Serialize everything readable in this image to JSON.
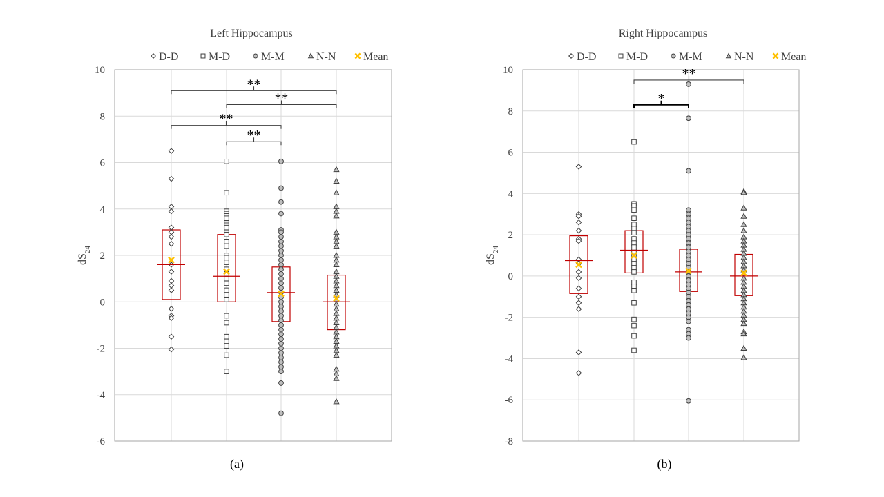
{
  "chart_data": [
    {
      "type": "scatter",
      "title": "Left Hippocampus",
      "panel_label": "(a)",
      "ylabel": "dS",
      "ylabel_sub": "24",
      "ylim": [
        -6,
        10
      ],
      "yticks": [
        -6,
        -4,
        -2,
        0,
        2,
        4,
        6,
        8,
        10
      ],
      "categories": [
        "D-D",
        "M-D",
        "M-M",
        "N-N"
      ],
      "legend": [
        "D-D",
        "M-D",
        "M-M",
        "N-N",
        "Mean"
      ],
      "series": [
        {
          "name": "D-D",
          "marker": "diamond",
          "points": [
            6.5,
            5.3,
            4.1,
            3.9,
            3.2,
            3.0,
            2.8,
            2.5,
            1.6,
            1.3,
            0.9,
            0.7,
            0.5,
            -0.3,
            -0.6,
            -0.7,
            -1.5,
            -2.05
          ],
          "box": {
            "q1": 0.1,
            "q3": 3.1,
            "median": 1.6,
            "mean": 1.8
          }
        },
        {
          "name": "M-D",
          "marker": "square",
          "points": [
            6.05,
            4.7,
            3.9,
            3.8,
            3.7,
            3.6,
            3.4,
            3.3,
            3.2,
            3.0,
            2.9,
            2.6,
            2.4,
            2.0,
            1.9,
            1.7,
            1.4,
            1.2,
            1.0,
            0.8,
            0.5,
            0.3,
            0.1,
            -0.6,
            -0.9,
            -1.5,
            -1.7,
            -1.9,
            -2.3,
            -3.0
          ],
          "box": {
            "q1": 0.0,
            "q3": 2.9,
            "median": 1.1,
            "mean": 1.3
          }
        },
        {
          "name": "M-M",
          "marker": "circle",
          "points": [
            6.05,
            4.9,
            4.3,
            3.8,
            3.1,
            3.0,
            2.8,
            2.6,
            2.4,
            2.2,
            2.0,
            1.8,
            1.6,
            1.4,
            1.2,
            1.0,
            0.8,
            0.6,
            0.4,
            0.2,
            0.0,
            -0.2,
            -0.4,
            -0.6,
            -0.8,
            -1.0,
            -1.2,
            -1.4,
            -1.6,
            -1.8,
            -2.0,
            -2.2,
            -2.4,
            -2.6,
            -2.8,
            -3.0,
            -3.5,
            -4.8
          ],
          "box": {
            "q1": -0.85,
            "q3": 1.5,
            "median": 0.4,
            "mean": 0.35
          }
        },
        {
          "name": "N-N",
          "marker": "triangle",
          "points": [
            5.7,
            5.2,
            4.7,
            4.1,
            3.9,
            3.7,
            3.0,
            2.8,
            2.6,
            2.4,
            2.0,
            1.8,
            1.6,
            1.3,
            1.1,
            0.9,
            0.7,
            0.5,
            0.3,
            0.1,
            -0.1,
            -0.3,
            -0.5,
            -0.7,
            -0.9,
            -1.1,
            -1.3,
            -1.5,
            -1.7,
            -1.9,
            -2.1,
            -2.3,
            -2.9,
            -3.1,
            -3.3,
            -4.3
          ],
          "box": {
            "q1": -1.2,
            "q3": 1.15,
            "median": 0.0,
            "mean": 0.15
          }
        }
      ],
      "significance": [
        {
          "from": 0,
          "to": 3,
          "y": 9.1,
          "label": "**"
        },
        {
          "from": 1,
          "to": 3,
          "y": 8.5,
          "label": "**"
        },
        {
          "from": 0,
          "to": 2,
          "y": 7.6,
          "label": "**"
        },
        {
          "from": 1,
          "to": 2,
          "y": 6.9,
          "label": "**"
        }
      ]
    },
    {
      "type": "scatter",
      "title": "Right Hippocampus",
      "panel_label": "(b)",
      "ylabel": "dS",
      "ylabel_sub": "24",
      "ylim": [
        -8,
        10
      ],
      "yticks": [
        -8,
        -6,
        -4,
        -2,
        0,
        2,
        4,
        6,
        8,
        10
      ],
      "categories": [
        "D-D",
        "M-D",
        "M-M",
        "N-N"
      ],
      "legend": [
        "D-D",
        "M-D",
        "M-M",
        "N-N",
        "Mean"
      ],
      "series": [
        {
          "name": "D-D",
          "marker": "diamond",
          "points": [
            5.3,
            3.0,
            2.9,
            2.6,
            2.2,
            1.8,
            1.7,
            0.8,
            0.6,
            0.2,
            -0.1,
            -0.6,
            -1.0,
            -1.3,
            -1.6,
            -3.7,
            -4.7
          ],
          "box": {
            "q1": -0.85,
            "q3": 1.95,
            "median": 0.75,
            "mean": 0.55
          }
        },
        {
          "name": "M-D",
          "marker": "square",
          "points": [
            6.5,
            3.5,
            3.4,
            3.2,
            2.8,
            2.5,
            2.3,
            2.1,
            1.8,
            1.6,
            1.4,
            1.2,
            1.0,
            0.8,
            0.6,
            0.4,
            0.2,
            -0.3,
            -0.5,
            -0.7,
            -1.3,
            -2.1,
            -2.4,
            -2.9,
            -3.6
          ],
          "box": {
            "q1": 0.15,
            "q3": 2.2,
            "median": 1.25,
            "mean": 1.0
          }
        },
        {
          "name": "M-M",
          "marker": "circle",
          "points": [
            9.3,
            7.65,
            5.1,
            3.2,
            3.0,
            2.8,
            2.6,
            2.4,
            2.2,
            2.0,
            1.8,
            1.6,
            1.4,
            1.2,
            1.0,
            0.8,
            0.6,
            0.4,
            0.2,
            0.0,
            -0.2,
            -0.4,
            -0.6,
            -0.8,
            -1.0,
            -1.2,
            -1.4,
            -1.6,
            -1.8,
            -2.0,
            -2.2,
            -2.6,
            -2.8,
            -3.0,
            -6.05
          ],
          "box": {
            "q1": -0.75,
            "q3": 1.3,
            "median": 0.2,
            "mean": 0.25
          }
        },
        {
          "name": "N-N",
          "marker": "triangle",
          "points": [
            4.1,
            4.05,
            3.3,
            2.9,
            2.5,
            2.2,
            1.9,
            1.7,
            1.5,
            1.3,
            1.1,
            0.9,
            0.7,
            0.5,
            0.3,
            0.1,
            -0.1,
            -0.3,
            -0.5,
            -0.7,
            -0.9,
            -1.1,
            -1.3,
            -1.5,
            -1.7,
            -1.9,
            -2.1,
            -2.3,
            -2.7,
            -2.8,
            -3.5,
            -3.95
          ],
          "box": {
            "q1": -0.95,
            "q3": 1.05,
            "median": 0.0,
            "mean": 0.15
          }
        }
      ],
      "significance": [
        {
          "from": 1,
          "to": 3,
          "y": 9.5,
          "label": "**"
        },
        {
          "from": 1,
          "to": 2,
          "y": 8.3,
          "label": "*"
        }
      ]
    }
  ]
}
